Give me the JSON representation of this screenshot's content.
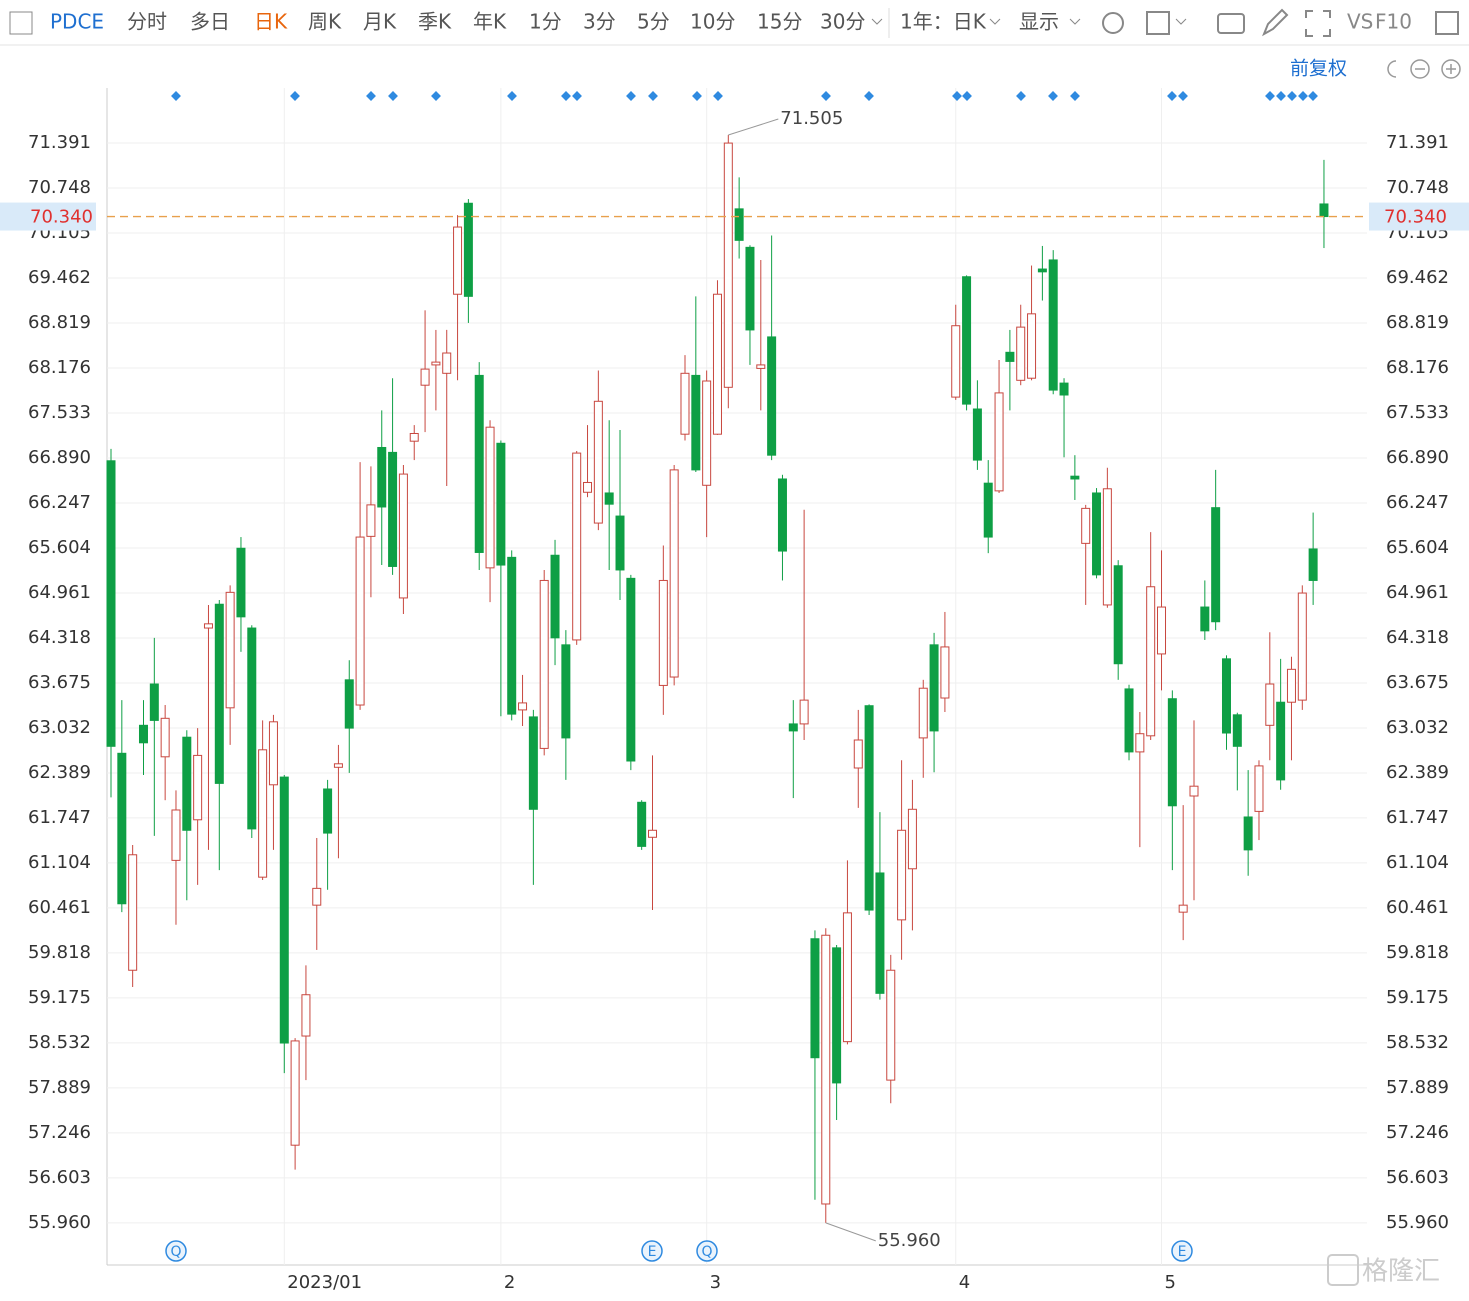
{
  "toolbar": {
    "items": [
      "PDCE",
      "分时",
      "多日",
      "日K",
      "周K",
      "月K",
      "季K",
      "年K",
      "1分",
      "3分",
      "5分",
      "10分",
      "15分",
      "30分",
      "1年：日K",
      "显示",
      "VS",
      "F10"
    ],
    "adjust": "前复权"
  },
  "watermark": "格隆汇",
  "chart_data": {
    "type": "candlestick",
    "up_color": "#c8473f",
    "down_color": "#0e9f45",
    "ylim": [
      55.358,
      72.177
    ],
    "yticks": [
      71.391,
      70.748,
      70.105,
      69.462,
      68.819,
      68.176,
      67.533,
      {
        "value": 66.89,
        "label": "66.890"
      },
      66.247,
      65.604,
      64.961,
      64.318,
      63.675,
      63.032,
      62.389,
      61.747,
      61.104,
      60.461,
      59.818,
      59.175,
      58.532,
      57.889,
      57.246,
      56.603,
      {
        "value": 55.96,
        "label": "55.960"
      }
    ],
    "grid": true,
    "last_price": {
      "value": 70.34,
      "label": "70.340"
    },
    "annotations": [
      {
        "value": 71.505,
        "label": "71.505"
      },
      {
        "value": 55.96,
        "label": "55.960"
      }
    ],
    "bottom_markers": [
      "Q",
      "E",
      "Q",
      "E"
    ],
    "categories": [
      null,
      null,
      null,
      null,
      null,
      null,
      null,
      null,
      null,
      null,
      null,
      null,
      null,
      null,
      null,
      null,
      "2023/01",
      null,
      null,
      null,
      null,
      null,
      null,
      null,
      null,
      null,
      null,
      null,
      null,
      null,
      null,
      null,
      null,
      null,
      null,
      null,
      "2",
      null,
      null,
      null,
      null,
      null,
      null,
      null,
      null,
      null,
      null,
      null,
      null,
      null,
      null,
      null,
      null,
      null,
      null,
      "3",
      null,
      null,
      null,
      null,
      null,
      null,
      null,
      null,
      null,
      null,
      null,
      null,
      null,
      null,
      null,
      null,
      null,
      null,
      null,
      null,
      null,
      null,
      "4",
      null,
      null,
      null,
      null,
      null,
      null,
      null,
      null,
      null,
      null,
      null,
      null,
      null,
      null,
      null,
      null,
      null,
      null,
      "5",
      null,
      null,
      null,
      null,
      null,
      null,
      null,
      null,
      null,
      null,
      null,
      null,
      null,
      null,
      null
    ],
    "open": [
      66.85,
      62.67,
      59.57,
      63.07,
      63.66,
      62.62,
      61.14,
      62.9,
      61.72,
      64.46,
      64.8,
      63.32,
      65.6,
      64.46,
      60.9,
      62.22,
      62.33,
      57.07,
      58.63,
      60.5,
      62.16,
      62.47,
      63.72,
      63.36,
      65.77,
      67.04,
      66.97,
      64.89,
      67.13,
      67.93,
      68.22,
      68.1,
      69.23,
      70.53,
      68.07,
      65.32,
      67.1,
      65.47,
      63.29,
      63.19,
      62.74,
      65.5,
      64.22,
      64.29,
      66.4,
      65.96,
      66.39,
      66.06,
      65.17,
      61.97,
      61.47,
      63.64,
      63.76,
      67.23,
      68.07,
      66.5,
      67.23,
      67.9,
      70.45,
      69.9,
      68.17,
      68.62,
      66.59,
      63.09,
      63.09,
      60.02,
      56.23,
      59.89,
      58.55,
      62.46,
      63.35,
      60.96,
      58.0,
      60.29,
      61.02,
      62.89,
      64.22,
      63.46,
      67.76,
      69.48,
      67.59,
      66.53,
      66.42,
      68.4,
      68.0,
      68.03,
      69.59,
      69.72,
      67.96,
      66.63,
      65.67,
      66.39,
      64.79,
      65.35,
      63.59,
      62.69,
      62.92,
      64.09,
      63.45,
      60.4,
      62.06,
      64.76,
      66.18,
      64.02,
      63.22,
      61.76,
      61.84,
      63.07,
      63.4,
      63.4,
      63.43,
      65.59,
      70.52
    ],
    "high": [
      67.02,
      63.43,
      61.36,
      63.43,
      64.32,
      63.36,
      62.14,
      63.0,
      63.03,
      64.79,
      64.86,
      65.07,
      65.76,
      64.5,
      63.14,
      63.22,
      62.36,
      58.6,
      59.64,
      61.46,
      62.29,
      62.79,
      64.0,
      66.83,
      66.77,
      67.57,
      68.03,
      66.79,
      67.36,
      69.0,
      68.72,
      68.72,
      70.36,
      70.59,
      68.26,
      67.43,
      67.14,
      65.57,
      63.79,
      63.29,
      65.29,
      65.72,
      64.43,
      66.99,
      67.36,
      68.14,
      67.43,
      67.29,
      65.22,
      62.0,
      62.64,
      65.64,
      66.79,
      68.36,
      69.2,
      68.14,
      69.43,
      71.505,
      70.9,
      69.93,
      69.72,
      70.07,
      66.65,
      63.43,
      66.15,
      60.14,
      60.17,
      59.93,
      61.14,
      63.29,
      63.37,
      61.83,
      59.79,
      62.57,
      62.29,
      63.72,
      64.39,
      64.69,
      69.08,
      69.5,
      68.0,
      66.86,
      68.29,
      68.72,
      69.08,
      69.64,
      69.92,
      69.86,
      68.03,
      66.93,
      66.22,
      66.46,
      66.75,
      65.43,
      63.65,
      63.26,
      65.83,
      65.57,
      63.57,
      61.93,
      63.14,
      65.14,
      66.72,
      64.07,
      63.25,
      62.43,
      62.57,
      64.4,
      64.02,
      64.05,
      65.07,
      66.11,
      71.15
    ],
    "low": [
      62.04,
      60.4,
      59.33,
      62.36,
      61.49,
      62.0,
      60.22,
      60.57,
      60.79,
      61.29,
      61.0,
      62.79,
      64.12,
      61.46,
      60.86,
      61.29,
      58.1,
      56.72,
      58.0,
      59.86,
      60.72,
      61.17,
      62.39,
      63.29,
      64.9,
      65.36,
      65.22,
      64.66,
      66.86,
      67.26,
      67.57,
      66.49,
      68.0,
      68.82,
      65.29,
      64.83,
      63.2,
      63.14,
      63.06,
      60.79,
      62.64,
      63.93,
      62.29,
      64.22,
      66.33,
      65.86,
      65.29,
      64.86,
      62.43,
      61.29,
      60.43,
      63.22,
      63.64,
      67.14,
      66.69,
      65.76,
      67.22,
      67.6,
      69.74,
      68.22,
      67.57,
      66.86,
      65.14,
      62.03,
      62.86,
      56.29,
      55.96,
      57.43,
      58.51,
      61.89,
      60.36,
      59.15,
      57.67,
      59.72,
      60.14,
      62.32,
      62.4,
      63.26,
      67.72,
      67.57,
      66.72,
      65.53,
      66.39,
      67.57,
      67.93,
      68.0,
      69.14,
      67.8,
      66.9,
      66.29,
      64.79,
      65.17,
      64.75,
      63.72,
      62.57,
      61.33,
      62.86,
      63.57,
      61.0,
      60.0,
      60.57,
      64.29,
      64.43,
      62.72,
      62.14,
      60.92,
      61.43,
      62.57,
      62.15,
      62.57,
      63.29,
      64.79,
      69.89
    ],
    "close": [
      62.77,
      60.52,
      61.22,
      62.82,
      63.14,
      63.17,
      61.86,
      61.57,
      62.64,
      64.52,
      62.24,
      64.97,
      64.62,
      61.59,
      62.72,
      63.12,
      58.53,
      58.56,
      59.22,
      60.74,
      61.53,
      62.52,
      63.03,
      65.76,
      66.22,
      66.19,
      65.34,
      66.66,
      67.24,
      68.16,
      68.26,
      68.39,
      70.19,
      69.2,
      65.54,
      67.33,
      65.36,
      63.23,
      63.39,
      61.87,
      65.14,
      64.32,
      62.89,
      66.96,
      66.54,
      67.7,
      66.23,
      65.29,
      62.56,
      61.34,
      61.57,
      65.14,
      66.72,
      68.1,
      66.72,
      67.99,
      69.23,
      71.39,
      70.0,
      68.72,
      68.22,
      66.93,
      65.56,
      62.99,
      63.43,
      58.32,
      60.07,
      57.96,
      60.39,
      62.86,
      60.43,
      59.24,
      59.57,
      61.57,
      61.87,
      63.6,
      62.99,
      64.19,
      68.78,
      67.66,
      66.86,
      65.76,
      67.82,
      68.27,
      68.76,
      68.95,
      69.55,
      67.86,
      67.79,
      66.59,
      66.17,
      65.22,
      66.45,
      63.95,
      62.69,
      62.95,
      65.05,
      64.76,
      61.92,
      60.5,
      62.2,
      64.42,
      64.55,
      62.96,
      62.77,
      61.29,
      62.49,
      63.66,
      62.29,
      63.87,
      64.96,
      65.14,
      70.34
    ]
  }
}
